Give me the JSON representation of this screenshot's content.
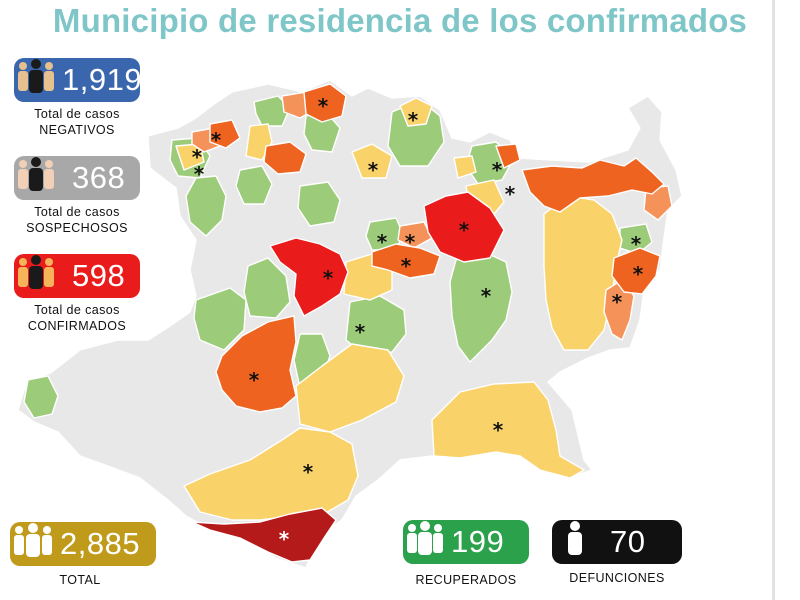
{
  "title": "Municipio de residencia de los confirmados",
  "stats": {
    "negativos": {
      "value": "1,919",
      "caption_line1": "Total de casos",
      "caption_line2": "NEGATIVOS",
      "color": "#3a66ad"
    },
    "sospechosos": {
      "value": "368",
      "caption_line1": "Total de casos",
      "caption_line2": "SOSPECHOSOS",
      "color": "#a8a8a8"
    },
    "confirmados": {
      "value": "598",
      "caption_line1": "Total de casos",
      "caption_line2": "CONFIRMADOS",
      "color": "#ea1b1b"
    },
    "total": {
      "value": "2,885",
      "caption": "TOTAL",
      "color": "#c09a1a"
    },
    "recuperados": {
      "value": "199",
      "caption": "RECUPERADOS",
      "color": "#2aa14a"
    },
    "defunciones": {
      "value": "70",
      "caption": "DEFUNCIONES",
      "color": "#111111"
    }
  },
  "map": {
    "marker": "*",
    "colors": {
      "no_cases": "#e8e8e8",
      "green": "#9ccb7a",
      "yellow": "#fad26a",
      "light_orange": "#f5925a",
      "orange": "#ee6320",
      "red": "#ea1b1b",
      "dark_red": "#b51a1a"
    }
  }
}
